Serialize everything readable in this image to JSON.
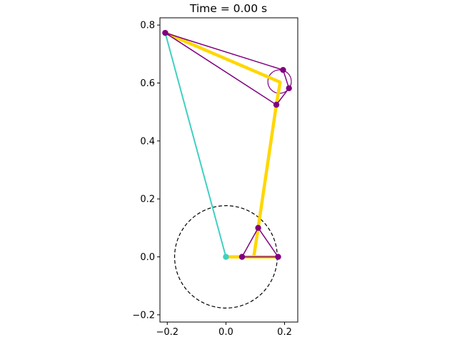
{
  "chart_data": {
    "type": "scatter",
    "title": "Time = 0.00 s",
    "xlabel": "",
    "ylabel": "",
    "xlim": [
      -0.225,
      0.245
    ],
    "ylim": [
      -0.225,
      0.825
    ],
    "aspect": "equal",
    "grid": false,
    "xticks": [
      -0.2,
      0.0,
      0.2
    ],
    "xtick_labels": [
      "−0.2",
      "0.0",
      "0.2"
    ],
    "yticks": [
      -0.2,
      0.0,
      0.2,
      0.4,
      0.6,
      0.8
    ],
    "ytick_labels": [
      "−0.2",
      "0.0",
      "0.2",
      "0.4",
      "0.6",
      "0.8"
    ],
    "colors": {
      "turquoise": "#40d0c0",
      "gold": "#ffd700",
      "purple": "#800080",
      "black": "#000000"
    },
    "circles": [
      {
        "name": "crank-path",
        "center": [
          0.0,
          0.0
        ],
        "r": 0.175,
        "color": "#000000",
        "style": "dashed"
      },
      {
        "name": "joint-circle",
        "center": [
          0.183,
          0.605
        ],
        "r": 0.04,
        "color": "#800080",
        "style": "solid"
      }
    ],
    "series": [
      {
        "color": "#40d0c0",
        "width": 2.0,
        "markers": false,
        "points": [
          [
            -0.207,
            0.773
          ],
          [
            0.0,
            0.0
          ]
        ]
      },
      {
        "color": "#ffd700",
        "width": 4.5,
        "markers": false,
        "points": [
          [
            -0.207,
            0.773
          ],
          [
            0.185,
            0.603
          ],
          [
            0.172,
            0.525
          ],
          [
            0.11,
            0.1
          ],
          [
            0.095,
            0.0
          ],
          [
            0.178,
            0.0
          ]
        ]
      },
      {
        "color": "#ffd700",
        "width": 4.5,
        "markers": false,
        "points": [
          [
            0.0,
            0.0
          ],
          [
            0.095,
            0.0
          ]
        ]
      },
      {
        "color": "#800080",
        "width": 1.5,
        "markers": false,
        "points": [
          [
            -0.207,
            0.773
          ],
          [
            0.195,
            0.645
          ],
          [
            0.215,
            0.582
          ],
          [
            0.172,
            0.525
          ],
          [
            -0.207,
            0.773
          ]
        ]
      },
      {
        "color": "#800080",
        "width": 1.5,
        "markers": false,
        "points": [
          [
            0.055,
            0.0
          ],
          [
            0.11,
            0.1
          ],
          [
            0.178,
            0.0
          ],
          [
            0.055,
            0.0
          ]
        ]
      }
    ],
    "markers": [
      {
        "x": 0.0,
        "y": 0.0,
        "color": "#40d0c0"
      },
      {
        "x": -0.207,
        "y": 0.773,
        "color": "#800080"
      },
      {
        "x": 0.195,
        "y": 0.645,
        "color": "#800080"
      },
      {
        "x": 0.215,
        "y": 0.582,
        "color": "#800080"
      },
      {
        "x": 0.172,
        "y": 0.525,
        "color": "#800080"
      },
      {
        "x": 0.11,
        "y": 0.1,
        "color": "#800080"
      },
      {
        "x": 0.055,
        "y": 0.0,
        "color": "#800080"
      },
      {
        "x": 0.178,
        "y": 0.0,
        "color": "#800080"
      }
    ]
  }
}
